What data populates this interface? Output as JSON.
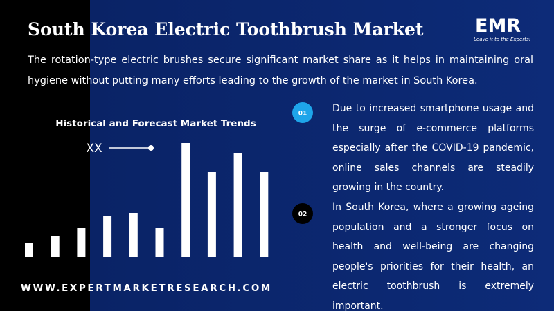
{
  "header": {
    "title": "South Korea Electric Toothbrush Market",
    "subtitle": "The rotation-type electric brushes secure significant market share as it helps in maintaining oral hygiene without putting many efforts leading to the growth of the market in South Korea."
  },
  "logo": {
    "name": "EMR",
    "tagline": "Leave it to the Experts!"
  },
  "chart_data": {
    "type": "bar",
    "title": "Historical and Forecast Market Trends",
    "annotation": "XX",
    "values": [
      20,
      30,
      42,
      59,
      64,
      42,
      165,
      123,
      150,
      123
    ],
    "color": "#ffffff",
    "ylim": [
      0,
      170
    ]
  },
  "points": [
    {
      "number": "01",
      "text": "Due to increased smartphone usage and the surge of e-commerce platforms especially after the COVID-19 pandemic, online sales channels are steadily growing in the country."
    },
    {
      "number": "02",
      "text": "In South Korea, where a growing ageing population and a stronger focus on health and well-being are changing people's priorities for their health, an electric toothbrush is extremely important."
    }
  ],
  "footer": {
    "website": "WWW.EXPERTMARKETRESEARCH.COM"
  }
}
